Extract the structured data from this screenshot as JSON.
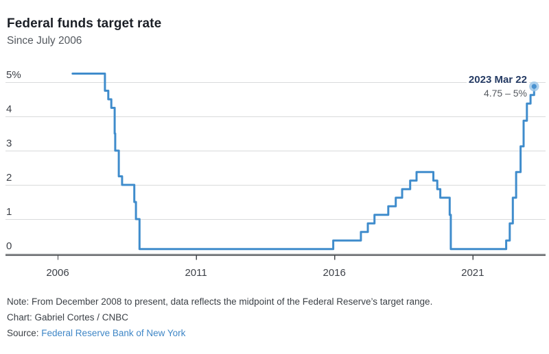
{
  "header": {
    "title": "Federal funds target rate",
    "subtitle": "Since July 2006"
  },
  "chart_data": {
    "type": "line",
    "step": true,
    "title": "Federal funds target rate",
    "subtitle": "Since July 2006",
    "grid": "horizontal",
    "legend": "none",
    "x_axis": {
      "tick_years": [
        2006,
        2011,
        2016,
        2021
      ],
      "range": [
        2005.6,
        2023.6
      ]
    },
    "y_axis": {
      "ticks": [
        {
          "label": "5%",
          "value": 5
        },
        {
          "label": "4",
          "value": 4
        },
        {
          "label": "3",
          "value": 3
        },
        {
          "label": "2",
          "value": 2
        },
        {
          "label": "1",
          "value": 1
        },
        {
          "label": "0",
          "value": 0
        }
      ],
      "range": [
        0,
        5.25
      ]
    },
    "series": [
      {
        "color": "#3f8ccc",
        "points": [
          [
            2006.54,
            5.25
          ],
          [
            2007.71,
            4.75
          ],
          [
            2007.83,
            4.5
          ],
          [
            2007.94,
            4.25
          ],
          [
            2008.06,
            3.5
          ],
          [
            2008.08,
            3.0
          ],
          [
            2008.21,
            2.25
          ],
          [
            2008.33,
            2.0
          ],
          [
            2008.77,
            1.5
          ],
          [
            2008.83,
            1.0
          ],
          [
            2008.96,
            0.125
          ],
          [
            2015.96,
            0.375
          ],
          [
            2016.96,
            0.625
          ],
          [
            2017.21,
            0.875
          ],
          [
            2017.45,
            1.125
          ],
          [
            2017.95,
            1.375
          ],
          [
            2018.22,
            1.625
          ],
          [
            2018.45,
            1.875
          ],
          [
            2018.74,
            2.125
          ],
          [
            2018.97,
            2.375
          ],
          [
            2019.58,
            2.125
          ],
          [
            2019.72,
            1.875
          ],
          [
            2019.83,
            1.625
          ],
          [
            2020.17,
            1.125
          ],
          [
            2020.21,
            0.125
          ],
          [
            2022.21,
            0.375
          ],
          [
            2022.34,
            0.875
          ],
          [
            2022.45,
            1.625
          ],
          [
            2022.57,
            2.375
          ],
          [
            2022.73,
            3.125
          ],
          [
            2022.84,
            3.875
          ],
          [
            2022.96,
            4.375
          ],
          [
            2023.09,
            4.625
          ],
          [
            2023.22,
            4.875
          ]
        ]
      }
    ],
    "annotation": {
      "date": "2023 Mar 22",
      "range": "4.75 – 5%",
      "x": 2023.22,
      "y": 4.875
    },
    "colors": {
      "line": "#3f8ccc",
      "grid": "#d8dadb",
      "axis": "#45484c",
      "dot_outer": "#a0c8e9",
      "dot_inner": "#4a92d0",
      "tick_label": "#3d4148"
    }
  },
  "footer": {
    "note": "Note: From December 2008 to present, data reflects the midpoint of the Federal Reserve’s target range.",
    "credit": "Chart: Gabriel Cortes / CNBC",
    "source_label": "Source: ",
    "source_link": "Federal Reserve Bank of New York"
  }
}
